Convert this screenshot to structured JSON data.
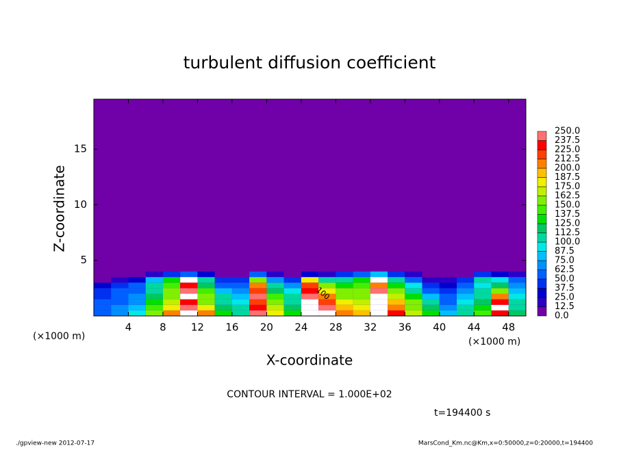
{
  "chart_data": {
    "type": "contourf",
    "title": "turbulent diffusion coefficient",
    "xlabel": "X-coordinate",
    "ylabel": "Z-coordinate",
    "xunit": "(×1000 m)",
    "yunit": "(×1000 m)",
    "contour_interval": "CONTOUR INTERVAL = 1.000E+02",
    "time_label": "t=194400 s",
    "contour_label": "100",
    "footer_left": "./gpview-new  2012-07-17",
    "footer_right": "MarsCond_Km.nc@Km,x=0:50000,z=0:20000,t=194400",
    "xlim": [
      0,
      50
    ],
    "ylim": [
      0,
      19.5
    ],
    "xticks": [
      4,
      8,
      12,
      16,
      20,
      24,
      28,
      32,
      36,
      40,
      44,
      48
    ],
    "yticks": [
      5,
      10,
      15
    ],
    "x": [
      1,
      3,
      5,
      7,
      9,
      11,
      13,
      15,
      17,
      19,
      21,
      23,
      25,
      27,
      29,
      31,
      33,
      35,
      37,
      39,
      41,
      43,
      45,
      47,
      49
    ],
    "z": [
      0.25,
      0.75,
      1.25,
      1.75,
      2.25,
      2.75,
      3.25,
      3.75
    ],
    "values": [
      [
        60,
        70,
        90,
        150,
        200,
        260,
        200,
        130,
        110,
        240,
        180,
        130,
        270,
        260,
        200,
        190,
        270,
        230,
        170,
        130,
        80,
        110,
        140,
        230,
        120
      ],
      [
        55,
        65,
        80,
        140,
        180,
        240,
        180,
        120,
        100,
        230,
        170,
        120,
        260,
        240,
        190,
        180,
        260,
        210,
        160,
        120,
        70,
        100,
        130,
        250,
        110
      ],
      [
        50,
        60,
        70,
        130,
        170,
        230,
        160,
        110,
        90,
        220,
        150,
        110,
        250,
        220,
        180,
        170,
        250,
        190,
        150,
        100,
        60,
        90,
        120,
        230,
        100
      ],
      [
        45,
        55,
        65,
        120,
        160,
        260,
        150,
        100,
        80,
        240,
        140,
        100,
        240,
        200,
        160,
        160,
        260,
        170,
        130,
        80,
        50,
        80,
        110,
        200,
        90
      ],
      [
        40,
        50,
        60,
        110,
        150,
        240,
        140,
        80,
        70,
        220,
        120,
        90,
        230,
        180,
        150,
        150,
        240,
        150,
        110,
        60,
        40,
        70,
        100,
        160,
        80
      ],
      [
        30,
        40,
        50,
        100,
        140,
        230,
        120,
        60,
        60,
        200,
        100,
        70,
        220,
        150,
        130,
        140,
        200,
        130,
        90,
        40,
        30,
        60,
        90,
        120,
        70
      ],
      [
        10,
        20,
        30,
        80,
        130,
        250,
        100,
        40,
        40,
        150,
        70,
        40,
        180,
        100,
        110,
        130,
        260,
        110,
        60,
        20,
        15,
        40,
        110,
        90,
        60
      ],
      [
        0,
        5,
        10,
        20,
        40,
        60,
        30,
        10,
        10,
        50,
        20,
        10,
        30,
        20,
        40,
        60,
        80,
        40,
        20,
        5,
        5,
        10,
        40,
        30,
        20
      ]
    ],
    "colorbar": {
      "levels": [
        {
          "value": 0,
          "label": "0.0"
        },
        12.5,
        {
          "value": 25,
          "label": "25.0"
        },
        37.5,
        {
          "value": 50,
          "label": "50.0"
        },
        62.5,
        {
          "value": 75,
          "label": "75.0"
        },
        87.5,
        {
          "value": 100,
          "label": "100.0"
        },
        112.5,
        {
          "value": 125,
          "label": "125.0"
        },
        137.5,
        {
          "value": 150,
          "label": "150.0"
        },
        162.5,
        {
          "value": 175,
          "label": "175.0"
        },
        187.5,
        {
          "value": 200,
          "label": "200.0"
        },
        212.5,
        {
          "value": 225,
          "label": "225.0"
        },
        237.5,
        {
          "value": 250,
          "label": "250.0"
        }
      ],
      "colors": [
        "#7000a8",
        "#2a00c8",
        "#0000d0",
        "#0030f0",
        "#0060ff",
        "#0090ff",
        "#00c0ff",
        "#00e8e8",
        "#00d8a0",
        "#00c860",
        "#00e000",
        "#40f000",
        "#80f000",
        "#c0f000",
        "#f0f000",
        "#ffc000",
        "#ff8000",
        "#ff4000",
        "#ff0000",
        "#ff7070"
      ],
      "over_color": "#ffffff"
    }
  }
}
